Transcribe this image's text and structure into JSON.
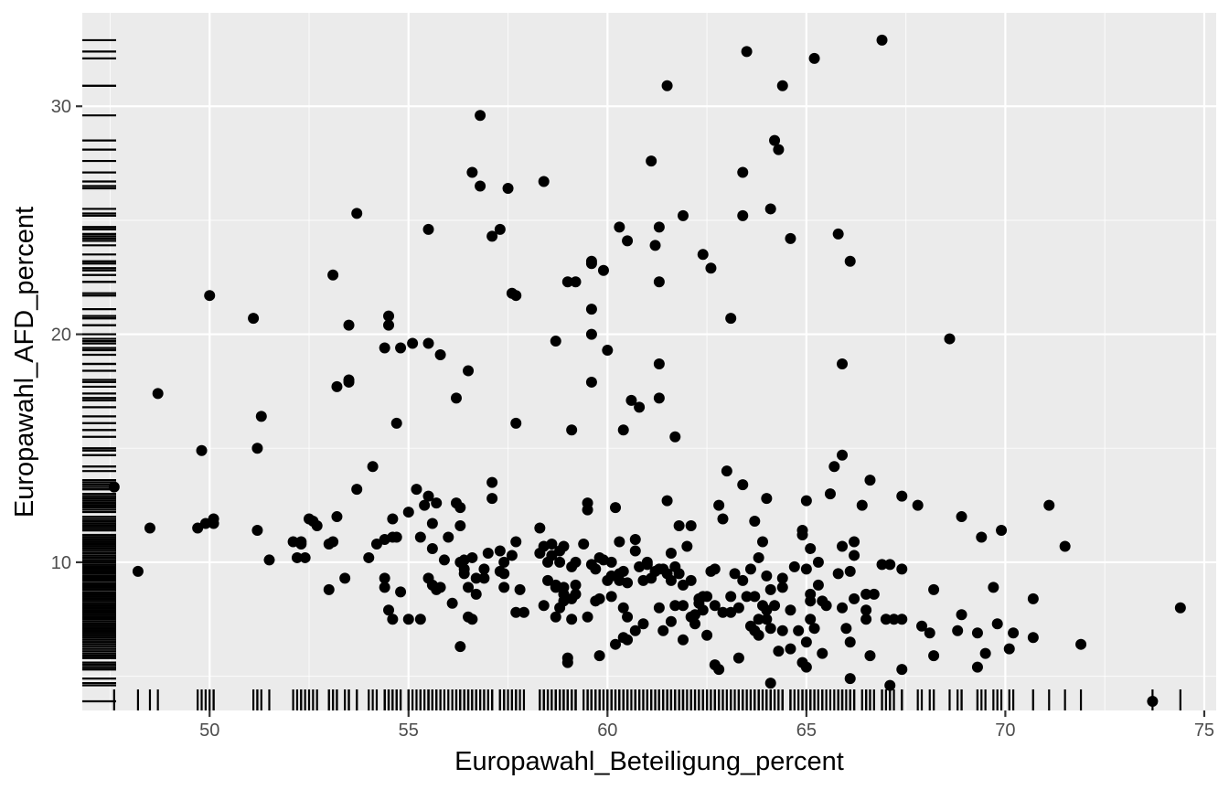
{
  "chart_data": {
    "type": "scatter",
    "xlabel": "Europawahl_Beteiligung_percent",
    "ylabel": "Europawahl_AFD_percent",
    "xlim": [
      46.8,
      75.3
    ],
    "ylim": [
      3.5,
      34.1
    ],
    "x_ticks": [
      50,
      55,
      60,
      65,
      70,
      75
    ],
    "y_ticks": [
      10,
      20,
      30
    ],
    "grid": true,
    "rug": true,
    "colors": {
      "panel": "#ebebeb",
      "grid_major": "#ffffff",
      "points": "#000000",
      "tick_text": "#4d4d4d"
    },
    "points": [
      [
        47.6,
        13.3
      ],
      [
        48.2,
        9.6
      ],
      [
        48.5,
        11.5
      ],
      [
        48.7,
        17.4
      ],
      [
        49.7,
        11.5
      ],
      [
        49.8,
        14.9
      ],
      [
        49.9,
        11.7
      ],
      [
        50.0,
        21.7
      ],
      [
        50.1,
        11.9
      ],
      [
        50.1,
        11.7
      ],
      [
        51.1,
        20.7
      ],
      [
        51.2,
        15.0
      ],
      [
        51.2,
        11.4
      ],
      [
        51.3,
        16.4
      ],
      [
        51.5,
        10.1
      ],
      [
        52.1,
        10.9
      ],
      [
        52.2,
        10.2
      ],
      [
        52.3,
        10.8
      ],
      [
        52.3,
        10.9
      ],
      [
        52.4,
        10.2
      ],
      [
        52.5,
        11.9
      ],
      [
        52.6,
        11.8
      ],
      [
        52.7,
        11.6
      ],
      [
        53.0,
        10.8
      ],
      [
        53.0,
        8.8
      ],
      [
        53.1,
        22.6
      ],
      [
        53.1,
        10.9
      ],
      [
        53.2,
        17.7
      ],
      [
        53.2,
        12.0
      ],
      [
        53.4,
        9.3
      ],
      [
        53.5,
        17.9
      ],
      [
        53.5,
        18.0
      ],
      [
        53.5,
        20.4
      ],
      [
        53.7,
        13.2
      ],
      [
        53.7,
        25.3
      ],
      [
        54.0,
        10.2
      ],
      [
        54.1,
        14.2
      ],
      [
        54.2,
        10.8
      ],
      [
        54.4,
        19.4
      ],
      [
        54.4,
        9.3
      ],
      [
        54.4,
        11.0
      ],
      [
        54.4,
        8.9
      ],
      [
        54.5,
        20.8
      ],
      [
        54.5,
        20.4
      ],
      [
        54.5,
        7.9
      ],
      [
        54.6,
        11.1
      ],
      [
        54.6,
        11.9
      ],
      [
        54.6,
        7.5
      ],
      [
        54.7,
        16.1
      ],
      [
        54.7,
        11.1
      ],
      [
        54.8,
        8.7
      ],
      [
        54.8,
        19.4
      ],
      [
        55.0,
        7.5
      ],
      [
        55.0,
        12.2
      ],
      [
        55.1,
        19.6
      ],
      [
        55.2,
        13.2
      ],
      [
        55.3,
        11.1
      ],
      [
        55.3,
        7.5
      ],
      [
        55.4,
        12.5
      ],
      [
        55.5,
        12.9
      ],
      [
        55.5,
        24.6
      ],
      [
        55.5,
        19.6
      ],
      [
        55.5,
        9.3
      ],
      [
        55.6,
        11.7
      ],
      [
        55.6,
        9.0
      ],
      [
        55.6,
        10.6
      ],
      [
        55.7,
        8.8
      ],
      [
        55.7,
        12.6
      ],
      [
        55.8,
        19.1
      ],
      [
        55.8,
        8.9
      ],
      [
        55.9,
        10.1
      ],
      [
        56.0,
        11.1
      ],
      [
        56.1,
        8.2
      ],
      [
        56.2,
        17.2
      ],
      [
        56.2,
        12.6
      ],
      [
        56.3,
        6.3
      ],
      [
        56.3,
        10.0
      ],
      [
        56.3,
        11.6
      ],
      [
        56.3,
        12.4
      ],
      [
        56.4,
        9.5
      ],
      [
        56.4,
        10.1
      ],
      [
        56.4,
        9.7
      ],
      [
        56.5,
        18.4
      ],
      [
        56.5,
        8.9
      ],
      [
        56.5,
        7.6
      ],
      [
        56.6,
        10.2
      ],
      [
        56.6,
        27.1
      ],
      [
        56.6,
        7.5
      ],
      [
        56.7,
        9.3
      ],
      [
        56.7,
        8.6
      ],
      [
        56.8,
        26.5
      ],
      [
        56.8,
        29.6
      ],
      [
        56.9,
        9.7
      ],
      [
        56.9,
        9.3
      ],
      [
        57.0,
        10.4
      ],
      [
        57.1,
        12.8
      ],
      [
        57.1,
        13.5
      ],
      [
        57.1,
        24.3
      ],
      [
        57.3,
        9.6
      ],
      [
        57.3,
        24.6
      ],
      [
        57.3,
        10.5
      ],
      [
        57.4,
        8.9
      ],
      [
        57.4,
        9.5
      ],
      [
        57.4,
        10.0
      ],
      [
        57.5,
        26.4
      ],
      [
        57.6,
        10.3
      ],
      [
        57.6,
        21.8
      ],
      [
        57.7,
        21.7
      ],
      [
        57.7,
        16.1
      ],
      [
        57.7,
        7.8
      ],
      [
        57.7,
        10.9
      ],
      [
        57.8,
        8.8
      ],
      [
        57.9,
        7.8
      ],
      [
        58.3,
        10.4
      ],
      [
        58.3,
        11.5
      ],
      [
        58.4,
        10.7
      ],
      [
        58.4,
        8.1
      ],
      [
        58.4,
        26.7
      ],
      [
        58.5,
        10.0
      ],
      [
        58.5,
        9.2
      ],
      [
        58.6,
        10.3
      ],
      [
        58.6,
        10.8
      ],
      [
        58.7,
        9.0
      ],
      [
        58.7,
        8.9
      ],
      [
        58.7,
        19.7
      ],
      [
        58.7,
        7.6
      ],
      [
        58.8,
        10.5
      ],
      [
        58.8,
        8.0
      ],
      [
        58.8,
        10.0
      ],
      [
        58.9,
        8.9
      ],
      [
        58.9,
        8.6
      ],
      [
        58.9,
        10.7
      ],
      [
        58.9,
        8.3
      ],
      [
        59.0,
        22.3
      ],
      [
        59.0,
        5.8
      ],
      [
        59.0,
        5.6
      ],
      [
        59.1,
        9.8
      ],
      [
        59.1,
        15.8
      ],
      [
        59.1,
        7.5
      ],
      [
        59.1,
        8.4
      ],
      [
        59.2,
        22.3
      ],
      [
        59.2,
        10.0
      ],
      [
        59.2,
        8.6
      ],
      [
        59.2,
        9.0
      ],
      [
        59.4,
        10.8
      ],
      [
        59.5,
        12.6
      ],
      [
        59.5,
        12.3
      ],
      [
        59.5,
        7.6
      ],
      [
        59.6,
        23.2
      ],
      [
        59.6,
        23.1
      ],
      [
        59.6,
        21.1
      ],
      [
        59.6,
        17.9
      ],
      [
        59.6,
        20.0
      ],
      [
        59.6,
        9.9
      ],
      [
        59.7,
        9.7
      ],
      [
        59.7,
        8.3
      ],
      [
        59.8,
        10.2
      ],
      [
        59.8,
        8.4
      ],
      [
        59.8,
        5.9
      ],
      [
        59.9,
        10.1
      ],
      [
        59.9,
        22.8
      ],
      [
        60.0,
        19.3
      ],
      [
        60.0,
        9.2
      ],
      [
        60.1,
        8.5
      ],
      [
        60.1,
        9.4
      ],
      [
        60.1,
        10.0
      ],
      [
        60.2,
        12.4
      ],
      [
        60.2,
        6.4
      ],
      [
        60.3,
        9.5
      ],
      [
        60.3,
        24.7
      ],
      [
        60.3,
        10.9
      ],
      [
        60.3,
        9.2
      ],
      [
        60.4,
        6.7
      ],
      [
        60.4,
        8.0
      ],
      [
        60.4,
        9.6
      ],
      [
        60.4,
        15.8
      ],
      [
        60.5,
        24.1
      ],
      [
        60.5,
        9.1
      ],
      [
        60.5,
        7.6
      ],
      [
        60.5,
        6.6
      ],
      [
        60.6,
        17.1
      ],
      [
        60.7,
        11.0
      ],
      [
        60.7,
        10.5
      ],
      [
        60.7,
        7.0
      ],
      [
        60.8,
        9.8
      ],
      [
        60.8,
        16.8
      ],
      [
        60.9,
        7.3
      ],
      [
        60.9,
        9.2
      ],
      [
        61.0,
        9.9
      ],
      [
        61.0,
        10.0
      ],
      [
        61.1,
        27.6
      ],
      [
        61.1,
        9.3
      ],
      [
        61.2,
        23.9
      ],
      [
        61.2,
        9.6
      ],
      [
        61.3,
        24.7
      ],
      [
        61.3,
        22.3
      ],
      [
        61.3,
        18.7
      ],
      [
        61.3,
        17.2
      ],
      [
        61.3,
        8.0
      ],
      [
        61.3,
        9.7
      ],
      [
        61.4,
        9.7
      ],
      [
        61.4,
        7.0
      ],
      [
        61.5,
        30.9
      ],
      [
        61.5,
        12.7
      ],
      [
        61.5,
        9.5
      ],
      [
        61.6,
        10.4
      ],
      [
        61.6,
        7.4
      ],
      [
        61.6,
        9.2
      ],
      [
        61.7,
        15.5
      ],
      [
        61.7,
        8.1
      ],
      [
        61.7,
        9.8
      ],
      [
        61.8,
        9.5
      ],
      [
        61.8,
        11.6
      ],
      [
        61.9,
        25.2
      ],
      [
        61.9,
        8.1
      ],
      [
        61.9,
        6.6
      ],
      [
        61.9,
        9.0
      ],
      [
        62.0,
        10.7
      ],
      [
        62.1,
        11.6
      ],
      [
        62.1,
        9.2
      ],
      [
        62.1,
        7.6
      ],
      [
        62.2,
        7.7
      ],
      [
        62.2,
        7.3
      ],
      [
        62.3,
        8.4
      ],
      [
        62.3,
        8.2
      ],
      [
        62.4,
        23.5
      ],
      [
        62.4,
        8.5
      ],
      [
        62.4,
        7.9
      ],
      [
        62.5,
        8.5
      ],
      [
        62.5,
        6.8
      ],
      [
        62.6,
        22.9
      ],
      [
        62.6,
        9.6
      ],
      [
        62.7,
        5.5
      ],
      [
        62.7,
        9.7
      ],
      [
        62.7,
        8.1
      ],
      [
        62.8,
        12.5
      ],
      [
        62.8,
        5.3
      ],
      [
        62.9,
        11.9
      ],
      [
        62.9,
        7.8
      ],
      [
        63.0,
        14.0
      ],
      [
        63.1,
        20.7
      ],
      [
        63.1,
        8.5
      ],
      [
        63.1,
        7.8
      ],
      [
        63.2,
        9.5
      ],
      [
        63.3,
        5.8
      ],
      [
        63.3,
        8.0
      ],
      [
        63.4,
        9.2
      ],
      [
        63.4,
        27.1
      ],
      [
        63.4,
        25.2
      ],
      [
        63.4,
        13.4
      ],
      [
        63.5,
        32.4
      ],
      [
        63.5,
        8.5
      ],
      [
        63.6,
        7.2
      ],
      [
        63.6,
        9.7
      ],
      [
        63.7,
        7.0
      ],
      [
        63.7,
        11.8
      ],
      [
        63.7,
        8.5
      ],
      [
        63.8,
        6.8
      ],
      [
        63.8,
        10.2
      ],
      [
        63.8,
        7.5
      ],
      [
        63.9,
        10.9
      ],
      [
        63.9,
        8.1
      ],
      [
        64.0,
        7.9
      ],
      [
        64.0,
        12.8
      ],
      [
        64.0,
        9.4
      ],
      [
        64.0,
        7.5
      ],
      [
        64.1,
        25.5
      ],
      [
        64.1,
        4.7
      ],
      [
        64.1,
        8.8
      ],
      [
        64.1,
        7.1
      ],
      [
        64.2,
        28.5
      ],
      [
        64.2,
        8.1
      ],
      [
        64.3,
        28.1
      ],
      [
        64.3,
        6.1
      ],
      [
        64.4,
        30.9
      ],
      [
        64.4,
        9.3
      ],
      [
        64.4,
        7.0
      ],
      [
        64.4,
        8.9
      ],
      [
        64.6,
        24.2
      ],
      [
        64.6,
        6.2
      ],
      [
        64.6,
        7.9
      ],
      [
        64.7,
        9.8
      ],
      [
        64.8,
        7.0
      ],
      [
        64.9,
        11.2
      ],
      [
        64.9,
        11.4
      ],
      [
        64.9,
        5.6
      ],
      [
        65.0,
        5.4
      ],
      [
        65.0,
        12.7
      ],
      [
        65.0,
        6.5
      ],
      [
        65.0,
        9.7
      ],
      [
        65.1,
        10.6
      ],
      [
        65.1,
        8.6
      ],
      [
        65.1,
        7.5
      ],
      [
        65.1,
        8.3
      ],
      [
        65.2,
        32.1
      ],
      [
        65.2,
        7.1
      ],
      [
        65.3,
        10.0
      ],
      [
        65.3,
        9.0
      ],
      [
        65.4,
        8.3
      ],
      [
        65.4,
        6.0
      ],
      [
        65.5,
        8.1
      ],
      [
        65.6,
        13.0
      ],
      [
        65.7,
        14.2
      ],
      [
        65.8,
        24.4
      ],
      [
        65.8,
        9.5
      ],
      [
        65.9,
        10.7
      ],
      [
        65.9,
        18.7
      ],
      [
        65.9,
        14.7
      ],
      [
        65.9,
        8.0
      ],
      [
        66.0,
        7.1
      ],
      [
        66.1,
        6.5
      ],
      [
        66.1,
        4.9
      ],
      [
        66.1,
        23.2
      ],
      [
        66.1,
        9.6
      ],
      [
        66.2,
        10.9
      ],
      [
        66.2,
        10.3
      ],
      [
        66.2,
        8.4
      ],
      [
        66.4,
        12.5
      ],
      [
        66.5,
        8.6
      ],
      [
        66.5,
        7.9
      ],
      [
        66.5,
        7.5
      ],
      [
        66.6,
        13.6
      ],
      [
        66.6,
        5.9
      ],
      [
        66.7,
        8.6
      ],
      [
        66.9,
        32.9
      ],
      [
        66.9,
        9.9
      ],
      [
        67.0,
        7.5
      ],
      [
        67.1,
        4.6
      ],
      [
        67.1,
        9.9
      ],
      [
        67.2,
        7.5
      ],
      [
        67.4,
        7.5
      ],
      [
        67.4,
        12.9
      ],
      [
        67.4,
        9.7
      ],
      [
        67.4,
        5.3
      ],
      [
        67.8,
        12.5
      ],
      [
        67.9,
        7.2
      ],
      [
        68.1,
        6.9
      ],
      [
        68.2,
        8.8
      ],
      [
        68.2,
        5.9
      ],
      [
        68.6,
        19.8
      ],
      [
        68.8,
        7.0
      ],
      [
        68.9,
        7.7
      ],
      [
        68.9,
        12.0
      ],
      [
        69.3,
        6.9
      ],
      [
        69.3,
        5.4
      ],
      [
        69.4,
        11.1
      ],
      [
        69.5,
        6.0
      ],
      [
        69.7,
        8.9
      ],
      [
        69.8,
        7.3
      ],
      [
        69.9,
        11.4
      ],
      [
        70.1,
        6.2
      ],
      [
        70.2,
        6.9
      ],
      [
        70.7,
        8.4
      ],
      [
        70.7,
        6.7
      ],
      [
        71.1,
        12.5
      ],
      [
        71.5,
        10.7
      ],
      [
        71.9,
        6.4
      ],
      [
        73.7,
        3.9
      ],
      [
        74.4,
        8.0
      ]
    ]
  }
}
